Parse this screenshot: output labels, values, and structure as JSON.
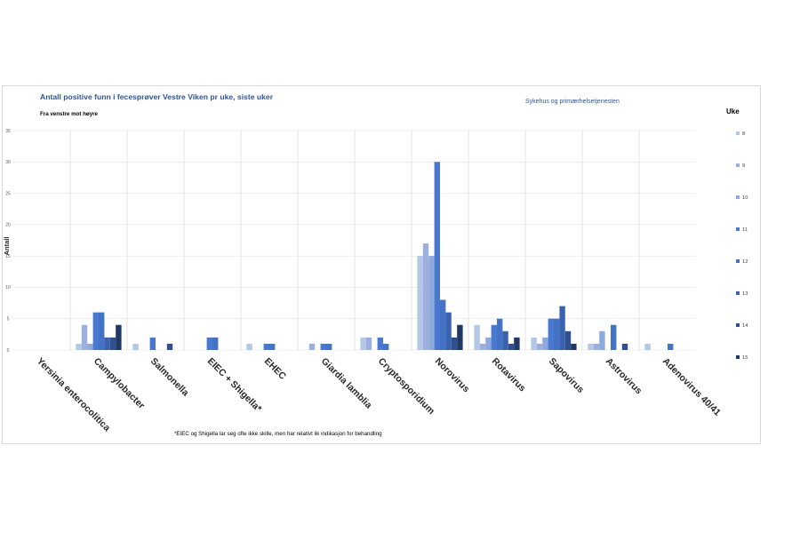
{
  "chart_data": {
    "type": "bar",
    "title": "Antall positive funn i fecesprøver Vestre Viken pr uke, siste uker",
    "subtitle": "Sykehus og primærhelsetjenesten",
    "order_note": "Fra venstre mot høyre",
    "ylabel": "Antall",
    "xlabel": "",
    "ylim": [
      0,
      35
    ],
    "yticks": [
      0,
      5,
      10,
      15,
      20,
      25,
      30,
      35
    ],
    "grid": true,
    "legend_title": "Uke",
    "legend_position": "right",
    "categories": [
      "Yersinia enterocolitica",
      "Campylobacter",
      "Salmonella",
      "EIEC + Shigella*",
      "EHEC",
      "Giardia lamblia",
      "Cryptosporidium",
      "Norovirus",
      "Rotavirus",
      "Sapovirus",
      "Astrovirus",
      "Adenovirus 40/41"
    ],
    "series": [
      {
        "name": "8",
        "color": "#b4c7e7",
        "values": [
          0,
          1,
          1,
          0,
          1,
          0,
          2,
          15,
          4,
          2,
          1,
          1
        ]
      },
      {
        "name": "9",
        "color": "#9dafdc",
        "values": [
          0,
          4,
          0,
          0,
          0,
          1,
          2,
          17,
          1,
          1,
          1,
          0
        ]
      },
      {
        "name": "10",
        "color": "#8ea9db",
        "values": [
          0,
          1,
          0,
          0,
          0,
          0,
          0,
          15,
          2,
          2,
          3,
          0
        ]
      },
      {
        "name": "11",
        "color": "#4a78d0",
        "values": [
          0,
          6,
          2,
          2,
          1,
          1,
          2,
          30,
          4,
          5,
          0,
          0
        ]
      },
      {
        "name": "12",
        "color": "#4472c4",
        "values": [
          0,
          6,
          0,
          2,
          1,
          1,
          1,
          8,
          5,
          5,
          4,
          1
        ]
      },
      {
        "name": "13",
        "color": "#3a62b0",
        "values": [
          0,
          2,
          0,
          0,
          0,
          0,
          0,
          6,
          3,
          7,
          0,
          0
        ]
      },
      {
        "name": "14",
        "color": "#2f4f8f",
        "values": [
          0,
          2,
          1,
          0,
          0,
          0,
          0,
          2,
          1,
          3,
          1,
          0
        ]
      },
      {
        "name": "15",
        "color": "#203864",
        "values": [
          0,
          4,
          0,
          0,
          0,
          0,
          0,
          4,
          2,
          1,
          0,
          0
        ]
      }
    ],
    "footnote": "*EIEC og Shigella lar seg ofte ikke skille, men har relativt lik indikasjon for behandling"
  }
}
